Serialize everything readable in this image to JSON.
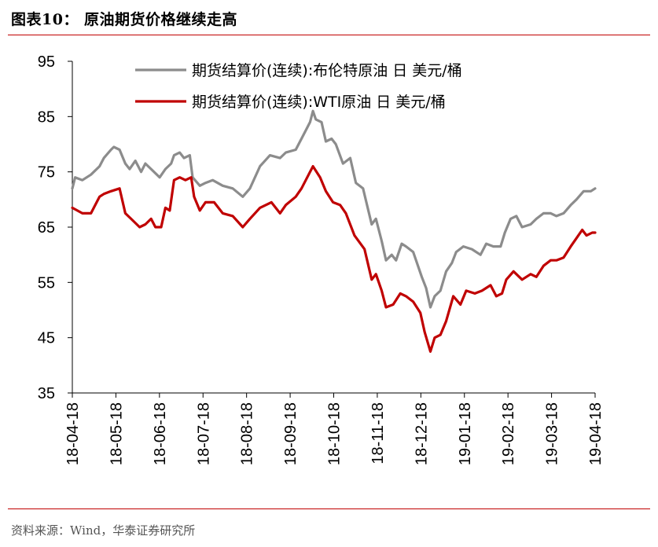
{
  "figure_title": "图表10：  原油期货价格继续走高",
  "source": "资料来源：Wind，华泰证券研究所",
  "colors": {
    "accent": "#c00000",
    "brent": "#8c8c8c",
    "wti": "#c00000"
  },
  "chart_data": {
    "type": "line",
    "title": "",
    "xlabel": "",
    "ylabel": "",
    "ylim": [
      35,
      95
    ],
    "yticks": [
      35,
      45,
      55,
      65,
      75,
      85,
      95
    ],
    "xlim": [
      "2018-04-18",
      "2019-04-18"
    ],
    "x_tick_labels": [
      "18-04-18",
      "18-05-18",
      "18-06-18",
      "18-07-18",
      "18-08-18",
      "18-09-18",
      "18-10-18",
      "18-11-18",
      "18-12-18",
      "19-01-18",
      "19-02-18",
      "19-03-18",
      "19-04-18"
    ],
    "legend_position": "top-center",
    "grid": false,
    "series": [
      {
        "name": "期货结算价(连续):布伦特原油 日 美元/桶",
        "color": "#8c8c8c",
        "points": [
          [
            "2018-04-18",
            72.0
          ],
          [
            "2018-04-20",
            74.0
          ],
          [
            "2018-04-25",
            73.5
          ],
          [
            "2018-05-01",
            74.5
          ],
          [
            "2018-05-07",
            76.0
          ],
          [
            "2018-05-10",
            77.5
          ],
          [
            "2018-05-15",
            79.0
          ],
          [
            "2018-05-17",
            79.5
          ],
          [
            "2018-05-21",
            79.0
          ],
          [
            "2018-05-25",
            76.5
          ],
          [
            "2018-05-28",
            75.5
          ],
          [
            "2018-06-01",
            77.0
          ],
          [
            "2018-06-05",
            75.0
          ],
          [
            "2018-06-08",
            76.5
          ],
          [
            "2018-06-12",
            75.5
          ],
          [
            "2018-06-18",
            74.0
          ],
          [
            "2018-06-22",
            75.5
          ],
          [
            "2018-06-26",
            76.5
          ],
          [
            "2018-06-28",
            78.0
          ],
          [
            "2018-07-02",
            78.5
          ],
          [
            "2018-07-05",
            77.5
          ],
          [
            "2018-07-09",
            78.0
          ],
          [
            "2018-07-11",
            74.0
          ],
          [
            "2018-07-16",
            72.5
          ],
          [
            "2018-07-20",
            73.0
          ],
          [
            "2018-07-25",
            73.5
          ],
          [
            "2018-08-01",
            72.5
          ],
          [
            "2018-08-08",
            72.0
          ],
          [
            "2018-08-15",
            70.5
          ],
          [
            "2018-08-20",
            72.0
          ],
          [
            "2018-08-27",
            76.0
          ],
          [
            "2018-09-03",
            78.0
          ],
          [
            "2018-09-10",
            77.5
          ],
          [
            "2018-09-14",
            78.5
          ],
          [
            "2018-09-21",
            79.0
          ],
          [
            "2018-09-25",
            81.0
          ],
          [
            "2018-09-28",
            82.5
          ],
          [
            "2018-10-01",
            84.0
          ],
          [
            "2018-10-03",
            86.0
          ],
          [
            "2018-10-05",
            84.5
          ],
          [
            "2018-10-09",
            84.0
          ],
          [
            "2018-10-12",
            80.5
          ],
          [
            "2018-10-16",
            81.0
          ],
          [
            "2018-10-19",
            80.0
          ],
          [
            "2018-10-24",
            76.5
          ],
          [
            "2018-10-29",
            77.5
          ],
          [
            "2018-11-02",
            73.0
          ],
          [
            "2018-11-07",
            72.0
          ],
          [
            "2018-11-13",
            65.5
          ],
          [
            "2018-11-16",
            66.5
          ],
          [
            "2018-11-20",
            62.5
          ],
          [
            "2018-11-23",
            59.0
          ],
          [
            "2018-11-27",
            60.0
          ],
          [
            "2018-11-30",
            59.0
          ],
          [
            "2018-12-04",
            62.0
          ],
          [
            "2018-12-07",
            61.5
          ],
          [
            "2018-12-12",
            60.5
          ],
          [
            "2018-12-18",
            56.0
          ],
          [
            "2018-12-21",
            54.0
          ],
          [
            "2018-12-24",
            50.5
          ],
          [
            "2018-12-27",
            52.5
          ],
          [
            "2018-12-31",
            53.5
          ],
          [
            "2019-01-04",
            57.0
          ],
          [
            "2019-01-08",
            58.5
          ],
          [
            "2019-01-11",
            60.5
          ],
          [
            "2019-01-16",
            61.5
          ],
          [
            "2019-01-22",
            61.0
          ],
          [
            "2019-01-28",
            60.0
          ],
          [
            "2019-02-01",
            62.0
          ],
          [
            "2019-02-06",
            61.5
          ],
          [
            "2019-02-11",
            61.5
          ],
          [
            "2019-02-14",
            64.0
          ],
          [
            "2019-02-18",
            66.5
          ],
          [
            "2019-02-22",
            67.0
          ],
          [
            "2019-02-26",
            65.0
          ],
          [
            "2019-03-04",
            65.5
          ],
          [
            "2019-03-08",
            66.5
          ],
          [
            "2019-03-13",
            67.5
          ],
          [
            "2019-03-18",
            67.5
          ],
          [
            "2019-03-22",
            67.0
          ],
          [
            "2019-03-27",
            67.5
          ],
          [
            "2019-04-01",
            69.0
          ],
          [
            "2019-04-05",
            70.0
          ],
          [
            "2019-04-10",
            71.5
          ],
          [
            "2019-04-15",
            71.5
          ],
          [
            "2019-04-18",
            72.0
          ]
        ]
      },
      {
        "name": "期货结算价(连续):WTI原油 日 美元/桶",
        "color": "#c00000",
        "points": [
          [
            "2018-04-18",
            68.5
          ],
          [
            "2018-04-25",
            67.5
          ],
          [
            "2018-05-01",
            67.5
          ],
          [
            "2018-05-07",
            70.5
          ],
          [
            "2018-05-10",
            71.0
          ],
          [
            "2018-05-15",
            71.5
          ],
          [
            "2018-05-21",
            72.0
          ],
          [
            "2018-05-25",
            67.5
          ],
          [
            "2018-05-29",
            66.5
          ],
          [
            "2018-06-04",
            65.0
          ],
          [
            "2018-06-08",
            65.5
          ],
          [
            "2018-06-12",
            66.5
          ],
          [
            "2018-06-15",
            65.0
          ],
          [
            "2018-06-19",
            65.0
          ],
          [
            "2018-06-22",
            68.5
          ],
          [
            "2018-06-25",
            68.0
          ],
          [
            "2018-06-28",
            73.5
          ],
          [
            "2018-07-02",
            74.0
          ],
          [
            "2018-07-06",
            73.5
          ],
          [
            "2018-07-10",
            74.0
          ],
          [
            "2018-07-12",
            70.5
          ],
          [
            "2018-07-16",
            68.0
          ],
          [
            "2018-07-20",
            69.5
          ],
          [
            "2018-07-26",
            69.5
          ],
          [
            "2018-08-01",
            67.5
          ],
          [
            "2018-08-08",
            67.0
          ],
          [
            "2018-08-15",
            65.0
          ],
          [
            "2018-08-20",
            66.5
          ],
          [
            "2018-08-27",
            68.5
          ],
          [
            "2018-09-04",
            69.5
          ],
          [
            "2018-09-10",
            67.5
          ],
          [
            "2018-09-14",
            69.0
          ],
          [
            "2018-09-21",
            70.5
          ],
          [
            "2018-09-25",
            72.0
          ],
          [
            "2018-10-01",
            75.0
          ],
          [
            "2018-10-03",
            76.0
          ],
          [
            "2018-10-08",
            74.0
          ],
          [
            "2018-10-12",
            71.5
          ],
          [
            "2018-10-17",
            69.5
          ],
          [
            "2018-10-22",
            69.0
          ],
          [
            "2018-10-26",
            67.5
          ],
          [
            "2018-11-01",
            63.5
          ],
          [
            "2018-11-08",
            61.0
          ],
          [
            "2018-11-13",
            55.5
          ],
          [
            "2018-11-16",
            56.5
          ],
          [
            "2018-11-20",
            53.5
          ],
          [
            "2018-11-23",
            50.5
          ],
          [
            "2018-11-28",
            51.0
          ],
          [
            "2018-12-03",
            53.0
          ],
          [
            "2018-12-07",
            52.5
          ],
          [
            "2018-12-12",
            51.5
          ],
          [
            "2018-12-17",
            49.5
          ],
          [
            "2018-12-20",
            46.0
          ],
          [
            "2018-12-24",
            42.5
          ],
          [
            "2018-12-27",
            45.0
          ],
          [
            "2018-12-31",
            45.5
          ],
          [
            "2019-01-04",
            48.0
          ],
          [
            "2019-01-09",
            52.5
          ],
          [
            "2019-01-14",
            51.0
          ],
          [
            "2019-01-18",
            53.5
          ],
          [
            "2019-01-24",
            53.0
          ],
          [
            "2019-01-29",
            53.5
          ],
          [
            "2019-02-04",
            54.5
          ],
          [
            "2019-02-08",
            52.5
          ],
          [
            "2019-02-12",
            53.0
          ],
          [
            "2019-02-15",
            55.5
          ],
          [
            "2019-02-20",
            57.0
          ],
          [
            "2019-02-26",
            55.5
          ],
          [
            "2019-03-04",
            56.5
          ],
          [
            "2019-03-08",
            56.0
          ],
          [
            "2019-03-13",
            58.0
          ],
          [
            "2019-03-18",
            59.0
          ],
          [
            "2019-03-22",
            59.0
          ],
          [
            "2019-03-27",
            59.5
          ],
          [
            "2019-04-01",
            61.5
          ],
          [
            "2019-04-05",
            63.0
          ],
          [
            "2019-04-09",
            64.5
          ],
          [
            "2019-04-12",
            63.5
          ],
          [
            "2019-04-16",
            64.0
          ],
          [
            "2019-04-18",
            64.0
          ]
        ]
      }
    ]
  }
}
